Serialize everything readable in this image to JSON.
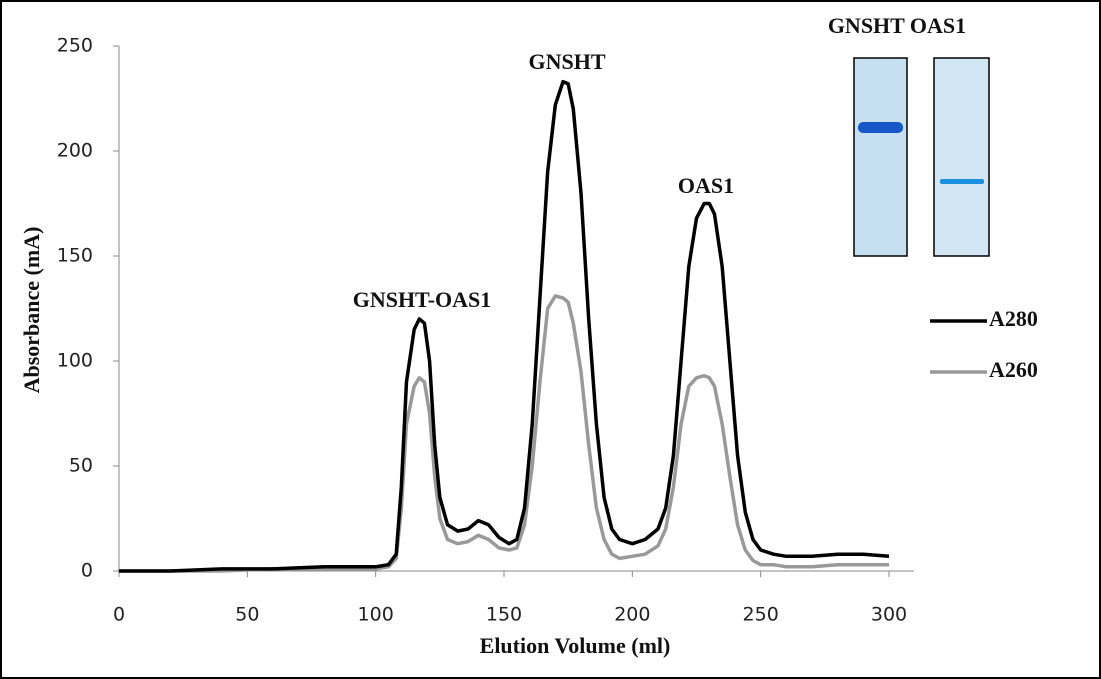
{
  "chart_data": {
    "type": "line",
    "x_label": "Elution Volume (ml)",
    "y_label": "Absorbance (mA)",
    "annotations": [
      "GNSHT-OAS1",
      "GNSHT",
      "OAS1",
      "GNSHT OAS1"
    ],
    "x": [
      0,
      20,
      40,
      60,
      80,
      100,
      105,
      108,
      110,
      112,
      115,
      117,
      119,
      121,
      123,
      125,
      128,
      132,
      136,
      140,
      144,
      148,
      152,
      155,
      158,
      161,
      164,
      167,
      170,
      173,
      175,
      177,
      180,
      183,
      186,
      189,
      192,
      195,
      200,
      205,
      210,
      213,
      216,
      219,
      222,
      225,
      228,
      230,
      232,
      235,
      238,
      241,
      244,
      247,
      250,
      255,
      260,
      270,
      280,
      290,
      300
    ],
    "series": [
      {
        "name": "A280",
        "color": "#000000",
        "values": [
          0,
          0,
          1,
          1,
          2,
          2,
          3,
          8,
          40,
          90,
          115,
          120,
          118,
          100,
          60,
          35,
          22,
          19,
          20,
          24,
          22,
          16,
          13,
          15,
          30,
          70,
          130,
          190,
          222,
          233,
          232,
          220,
          180,
          120,
          70,
          35,
          20,
          15,
          13,
          15,
          20,
          30,
          55,
          100,
          145,
          168,
          175,
          175,
          170,
          145,
          100,
          55,
          28,
          15,
          10,
          8,
          7,
          7,
          8,
          8,
          7
        ]
      },
      {
        "name": "A260",
        "color": "#999999",
        "values": [
          0,
          0,
          0,
          1,
          1,
          1,
          2,
          6,
          30,
          70,
          88,
          92,
          90,
          75,
          45,
          25,
          15,
          13,
          14,
          17,
          15,
          11,
          10,
          11,
          22,
          50,
          90,
          125,
          131,
          130,
          128,
          118,
          95,
          60,
          30,
          15,
          8,
          6,
          7,
          8,
          12,
          20,
          40,
          70,
          88,
          92,
          93,
          92,
          88,
          70,
          45,
          22,
          10,
          5,
          3,
          3,
          2,
          2,
          3,
          3,
          3
        ]
      }
    ],
    "xlim": [
      0,
      300
    ],
    "xticks": [
      0,
      50,
      100,
      150,
      200,
      250,
      300
    ],
    "ylim": [
      0,
      250
    ],
    "yticks": [
      0,
      50,
      100,
      150,
      200,
      250
    ],
    "legend": "right"
  }
}
